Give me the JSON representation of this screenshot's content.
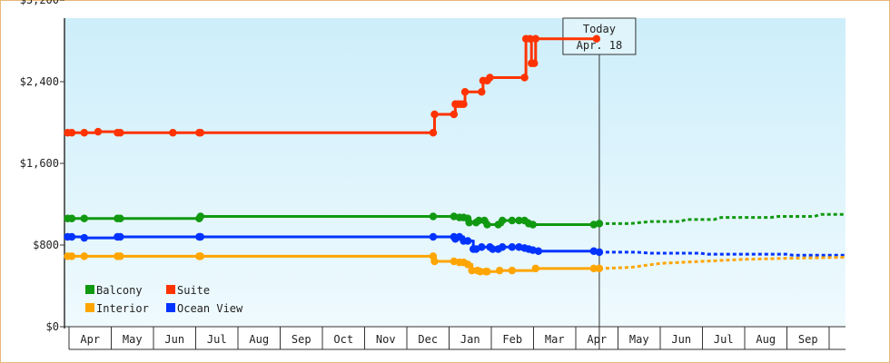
{
  "chart_data": {
    "type": "line",
    "title": "",
    "xlabel": "",
    "ylabel": "",
    "ylim": [
      0,
      3200
    ],
    "y_ticks": [
      "$0",
      "$800",
      "$1,600",
      "$2,400",
      "$3,200"
    ],
    "y_tick_values": [
      0,
      800,
      1600,
      2400,
      3200
    ],
    "x_range": [
      "2023-04-01",
      "2024-09-30"
    ],
    "months": [
      "Apr",
      "May",
      "Jun",
      "Jul",
      "Aug",
      "Sep",
      "Oct",
      "Nov",
      "Dec",
      "Jan",
      "Feb",
      "Mar",
      "Apr",
      "May",
      "Jun",
      "Jul",
      "Aug",
      "Sep"
    ],
    "grid": false,
    "legend_position": "bottom-left",
    "today": {
      "line1": "Today",
      "line2": "Apr. 18",
      "date": "2024-04-18"
    },
    "background": {
      "top": "#cdeefa",
      "bottom": "#effafe"
    },
    "series": [
      {
        "name": "Suite",
        "color": "#ff3300",
        "points": [
          [
            "2023-03-31",
            1900
          ],
          [
            "2023-04-03",
            1900
          ],
          [
            "2023-04-12",
            1900
          ],
          [
            "2023-04-22",
            1910
          ],
          [
            "2023-05-06",
            1900
          ],
          [
            "2023-05-08",
            1900
          ],
          [
            "2023-06-15",
            1900
          ],
          [
            "2023-07-04",
            1900
          ],
          [
            "2023-07-05",
            1900
          ],
          [
            "2023-12-20",
            1900
          ],
          [
            "2023-12-21",
            2080
          ],
          [
            "2024-01-04",
            2080
          ],
          [
            "2024-01-05",
            2180
          ],
          [
            "2024-01-07",
            2180
          ],
          [
            "2024-01-09",
            2180
          ],
          [
            "2024-01-11",
            2180
          ],
          [
            "2024-01-12",
            2300
          ],
          [
            "2024-01-24",
            2300
          ],
          [
            "2024-01-25",
            2410
          ],
          [
            "2024-01-28",
            2410
          ],
          [
            "2024-01-30",
            2440
          ],
          [
            "2024-02-24",
            2440
          ],
          [
            "2024-02-25",
            2820
          ],
          [
            "2024-02-28",
            2820
          ],
          [
            "2024-02-29",
            2580
          ],
          [
            "2024-03-02",
            2580
          ],
          [
            "2024-03-03",
            2820
          ],
          [
            "2024-04-16",
            2820
          ]
        ],
        "forecast": []
      },
      {
        "name": "Balcony",
        "color": "#119911",
        "points": [
          [
            "2023-03-31",
            1060
          ],
          [
            "2023-04-03",
            1060
          ],
          [
            "2023-04-12",
            1060
          ],
          [
            "2023-05-06",
            1060
          ],
          [
            "2023-05-08",
            1060
          ],
          [
            "2023-07-04",
            1060
          ],
          [
            "2023-07-05",
            1080
          ],
          [
            "2023-12-20",
            1080
          ],
          [
            "2024-01-04",
            1080
          ],
          [
            "2024-01-08",
            1070
          ],
          [
            "2024-01-11",
            1070
          ],
          [
            "2024-01-14",
            1060
          ],
          [
            "2024-01-15",
            1020
          ],
          [
            "2024-01-20",
            1020
          ],
          [
            "2024-01-22",
            1040
          ],
          [
            "2024-01-26",
            1040
          ],
          [
            "2024-01-28",
            1000
          ],
          [
            "2024-02-05",
            1000
          ],
          [
            "2024-02-08",
            1040
          ],
          [
            "2024-02-15",
            1040
          ],
          [
            "2024-02-20",
            1040
          ],
          [
            "2024-02-24",
            1040
          ],
          [
            "2024-02-27",
            1010
          ],
          [
            "2024-03-01",
            1000
          ],
          [
            "2024-04-14",
            1000
          ],
          [
            "2024-04-18",
            1010
          ]
        ],
        "forecast": [
          [
            "2024-04-18",
            1010
          ],
          [
            "2024-05-10",
            1010
          ],
          [
            "2024-05-25",
            1030
          ],
          [
            "2024-06-15",
            1030
          ],
          [
            "2024-06-20",
            1050
          ],
          [
            "2024-07-10",
            1050
          ],
          [
            "2024-07-15",
            1070
          ],
          [
            "2024-08-20",
            1070
          ],
          [
            "2024-08-25",
            1080
          ],
          [
            "2024-09-20",
            1080
          ],
          [
            "2024-09-25",
            1100
          ],
          [
            "2024-10-20",
            1100
          ]
        ]
      },
      {
        "name": "Ocean View",
        "color": "#0033ff",
        "points": [
          [
            "2023-03-31",
            880
          ],
          [
            "2023-04-03",
            880
          ],
          [
            "2023-04-12",
            870
          ],
          [
            "2023-05-06",
            880
          ],
          [
            "2023-05-08",
            880
          ],
          [
            "2023-07-04",
            880
          ],
          [
            "2023-07-05",
            880
          ],
          [
            "2023-12-20",
            880
          ],
          [
            "2024-01-04",
            880
          ],
          [
            "2024-01-05",
            860
          ],
          [
            "2024-01-08",
            880
          ],
          [
            "2024-01-11",
            840
          ],
          [
            "2024-01-14",
            840
          ],
          [
            "2024-01-18",
            760
          ],
          [
            "2024-01-20",
            760
          ],
          [
            "2024-01-24",
            780
          ],
          [
            "2024-01-30",
            780
          ],
          [
            "2024-02-01",
            760
          ],
          [
            "2024-02-05",
            760
          ],
          [
            "2024-02-08",
            780
          ],
          [
            "2024-02-15",
            780
          ],
          [
            "2024-02-20",
            780
          ],
          [
            "2024-02-24",
            770
          ],
          [
            "2024-02-27",
            760
          ],
          [
            "2024-03-01",
            750
          ],
          [
            "2024-03-05",
            740
          ],
          [
            "2024-04-14",
            740
          ],
          [
            "2024-04-18",
            730
          ]
        ],
        "forecast": [
          [
            "2024-04-18",
            730
          ],
          [
            "2024-05-15",
            730
          ],
          [
            "2024-05-25",
            720
          ],
          [
            "2024-06-30",
            720
          ],
          [
            "2024-07-05",
            710
          ],
          [
            "2024-08-31",
            710
          ],
          [
            "2024-09-05",
            700
          ],
          [
            "2024-10-20",
            700
          ]
        ]
      },
      {
        "name": "Interior",
        "color": "#ffa500",
        "points": [
          [
            "2023-03-31",
            690
          ],
          [
            "2023-04-03",
            690
          ],
          [
            "2023-04-12",
            690
          ],
          [
            "2023-05-06",
            690
          ],
          [
            "2023-05-08",
            690
          ],
          [
            "2023-07-04",
            690
          ],
          [
            "2023-07-05",
            690
          ],
          [
            "2023-12-20",
            690
          ],
          [
            "2023-12-21",
            640
          ],
          [
            "2024-01-04",
            640
          ],
          [
            "2024-01-08",
            630
          ],
          [
            "2024-01-11",
            630
          ],
          [
            "2024-01-14",
            610
          ],
          [
            "2024-01-17",
            550
          ],
          [
            "2024-01-21",
            550
          ],
          [
            "2024-01-23",
            540
          ],
          [
            "2024-01-27",
            540
          ],
          [
            "2024-01-28",
            540
          ],
          [
            "2024-02-06",
            550
          ],
          [
            "2024-02-15",
            550
          ],
          [
            "2024-03-03",
            570
          ],
          [
            "2024-04-14",
            570
          ],
          [
            "2024-04-18",
            570
          ]
        ],
        "forecast": [
          [
            "2024-04-18",
            570
          ],
          [
            "2024-05-10",
            580
          ],
          [
            "2024-06-01",
            620
          ],
          [
            "2024-07-01",
            640
          ],
          [
            "2024-08-01",
            660
          ],
          [
            "2024-09-01",
            670
          ],
          [
            "2024-10-20",
            680
          ]
        ]
      }
    ],
    "legend": [
      {
        "name": "Balcony",
        "color": "#119911"
      },
      {
        "name": "Suite",
        "color": "#ff3300"
      },
      {
        "name": "Interior",
        "color": "#ffa500"
      },
      {
        "name": "Ocean View",
        "color": "#0033ff"
      }
    ]
  }
}
